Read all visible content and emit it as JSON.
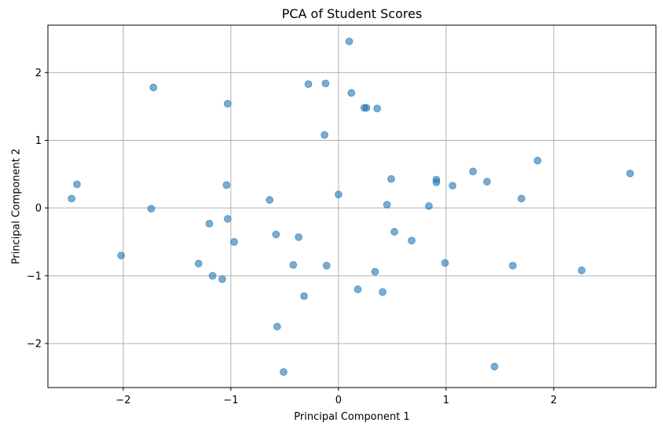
{
  "chart_data": {
    "type": "scatter",
    "title": "PCA of Student Scores",
    "xlabel": "Principal Component 1",
    "ylabel": "Principal Component 2",
    "xlim": [
      -2.7,
      2.95
    ],
    "ylim": [
      -2.65,
      2.7
    ],
    "xticks": [
      -2,
      -1,
      0,
      1,
      2
    ],
    "yticks": [
      -2,
      -1,
      0,
      1,
      2
    ],
    "xtick_labels": [
      "−2",
      "−1",
      "0",
      "1",
      "2"
    ],
    "ytick_labels": [
      "−2",
      "−1",
      "0",
      "1",
      "2"
    ],
    "grid": true,
    "marker_color": "#1f77b4",
    "marker_alpha": 0.6,
    "points": [
      {
        "x": 0.1,
        "y": 2.46
      },
      {
        "x": -1.72,
        "y": 1.78
      },
      {
        "x": -0.28,
        "y": 1.83
      },
      {
        "x": -0.12,
        "y": 1.84
      },
      {
        "x": 0.12,
        "y": 1.7
      },
      {
        "x": -1.03,
        "y": 1.54
      },
      {
        "x": 0.24,
        "y": 1.48
      },
      {
        "x": 0.26,
        "y": 1.48
      },
      {
        "x": 0.36,
        "y": 1.47
      },
      {
        "x": -0.13,
        "y": 1.08
      },
      {
        "x": 1.85,
        "y": 0.7
      },
      {
        "x": 2.71,
        "y": 0.51
      },
      {
        "x": 1.25,
        "y": 0.54
      },
      {
        "x": 0.49,
        "y": 0.43
      },
      {
        "x": 0.91,
        "y": 0.42
      },
      {
        "x": 0.91,
        "y": 0.38
      },
      {
        "x": 1.38,
        "y": 0.39
      },
      {
        "x": 1.06,
        "y": 0.33
      },
      {
        "x": -2.43,
        "y": 0.35
      },
      {
        "x": -1.04,
        "y": 0.34
      },
      {
        "x": -2.48,
        "y": 0.14
      },
      {
        "x": 0.0,
        "y": 0.2
      },
      {
        "x": -0.64,
        "y": 0.12
      },
      {
        "x": 1.7,
        "y": 0.14
      },
      {
        "x": 0.45,
        "y": 0.05
      },
      {
        "x": 0.84,
        "y": 0.03
      },
      {
        "x": -1.74,
        "y": -0.01
      },
      {
        "x": -1.03,
        "y": -0.16
      },
      {
        "x": -1.2,
        "y": -0.23
      },
      {
        "x": 0.52,
        "y": -0.35
      },
      {
        "x": -0.58,
        "y": -0.39
      },
      {
        "x": -0.37,
        "y": -0.43
      },
      {
        "x": -0.97,
        "y": -0.5
      },
      {
        "x": 0.68,
        "y": -0.48
      },
      {
        "x": -2.02,
        "y": -0.7
      },
      {
        "x": 0.99,
        "y": -0.81
      },
      {
        "x": -1.3,
        "y": -0.82
      },
      {
        "x": -0.42,
        "y": -0.84
      },
      {
        "x": -0.11,
        "y": -0.85
      },
      {
        "x": 1.62,
        "y": -0.85
      },
      {
        "x": 2.26,
        "y": -0.92
      },
      {
        "x": 0.34,
        "y": -0.94
      },
      {
        "x": -1.17,
        "y": -1.0
      },
      {
        "x": -1.08,
        "y": -1.05
      },
      {
        "x": 0.18,
        "y": -1.2
      },
      {
        "x": 0.41,
        "y": -1.24
      },
      {
        "x": -0.32,
        "y": -1.3
      },
      {
        "x": -0.57,
        "y": -1.75
      },
      {
        "x": -0.51,
        "y": -2.42
      },
      {
        "x": 1.45,
        "y": -2.34
      }
    ]
  }
}
